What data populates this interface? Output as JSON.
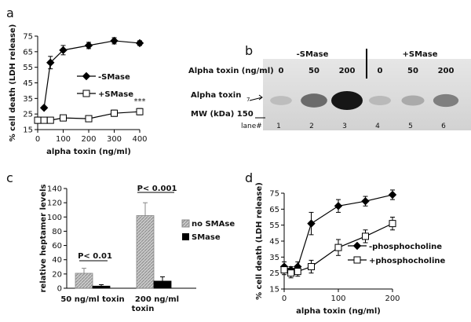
{
  "chart_data": [
    {
      "panel": "a",
      "type": "line",
      "ylabel": "% cell death (LDH release)",
      "xlabel": "alpha toxin (ng/ml)",
      "xlim": [
        0,
        400
      ],
      "ylim": [
        15,
        75
      ],
      "xticks": [
        0,
        100,
        200,
        300,
        400
      ],
      "yticks": [
        15,
        25,
        35,
        45,
        55,
        65,
        75
      ],
      "legend_position": "center-right",
      "series": [
        {
          "name": "-SMase",
          "marker": "filled-diamond",
          "x": [
            25,
            50,
            100,
            200,
            300,
            400
          ],
          "y": [
            29,
            58,
            66,
            69,
            72,
            70.5
          ],
          "err": [
            1,
            4,
            3,
            2,
            2,
            1.5
          ]
        },
        {
          "name": "+SMase",
          "marker": "open-square",
          "x": [
            0,
            25,
            50,
            100,
            200,
            300,
            400
          ],
          "y": [
            21,
            21,
            21,
            22.5,
            22,
            25.5,
            26.5
          ],
          "err": [
            2,
            1,
            1,
            1.5,
            1.5,
            2,
            2
          ]
        }
      ],
      "annotation": "***"
    },
    {
      "panel": "b",
      "type": "table",
      "row_label": "Alpha toxin (ng/ml)",
      "group_labels": [
        "-SMase",
        "+SMase"
      ],
      "concentrations": [
        "0",
        "50",
        "200",
        "0",
        "50",
        "200"
      ],
      "band_intensity": [
        0.12,
        0.55,
        1.0,
        0.14,
        0.22,
        0.45
      ],
      "band_label": "Alpha toxin",
      "band_subscript": "7",
      "mw_label": "MW (kDa) 150",
      "lane_label": "lane#",
      "lanes": [
        "1",
        "2",
        "3",
        "4",
        "5",
        "6"
      ]
    },
    {
      "panel": "c",
      "type": "bar",
      "ylabel": "relative heptamer levels",
      "ylim": [
        0,
        140
      ],
      "yticks": [
        0,
        20,
        40,
        60,
        80,
        100,
        120,
        140
      ],
      "categories": [
        "50 ng/ml toxin",
        "200 ng/ml toxin"
      ],
      "series": [
        {
          "name": "no SMAse",
          "values": [
            21,
            102
          ],
          "err": [
            7,
            18
          ]
        },
        {
          "name": "SMase",
          "values": [
            3,
            10
          ],
          "err": [
            2,
            6
          ]
        }
      ],
      "legend_position": "right",
      "annotations": [
        "P< 0.01",
        "P< 0.001"
      ]
    },
    {
      "panel": "d",
      "type": "line",
      "ylabel": "% cell death (LDH release)",
      "xlabel": "alpha toxin (ng/ml)",
      "xlim": [
        0,
        200
      ],
      "ylim": [
        15,
        75
      ],
      "xticks": [
        0,
        100,
        200
      ],
      "yticks": [
        15,
        25,
        35,
        45,
        55,
        65,
        75
      ],
      "legend_position": "center-right",
      "series": [
        {
          "name": "-phosphocholine",
          "marker": "filled-diamond",
          "x": [
            0,
            12.5,
            25,
            50,
            100,
            150,
            200
          ],
          "y": [
            29,
            27,
            29,
            56,
            67,
            70,
            74
          ],
          "err": [
            3,
            2,
            3,
            7,
            4,
            3,
            3
          ]
        },
        {
          "name": "+phosphocholine",
          "marker": "open-square",
          "x": [
            0,
            12.5,
            25,
            50,
            100,
            150,
            200
          ],
          "y": [
            27,
            25,
            26,
            29,
            41,
            48,
            56
          ],
          "err": [
            3,
            3,
            3,
            4,
            5,
            4,
            4
          ]
        }
      ]
    }
  ],
  "panel_labels": {
    "a": "a",
    "b": "b",
    "c": "c",
    "d": "d"
  }
}
